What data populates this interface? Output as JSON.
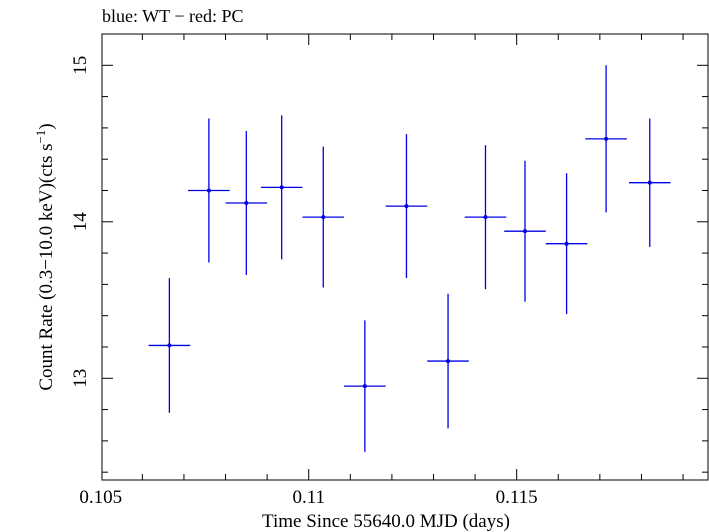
{
  "chart_data": {
    "type": "scatter",
    "title": "blue: WT − red: PC",
    "xlabel": "Time Since 55640.0 MJD (days)",
    "ylabel_main": "Count Rate (0.3−10.0 keV)(cts s",
    "ylabel_sup": "−1",
    "ylabel_close": ")",
    "xlim": [
      0.10503,
      0.1196
    ],
    "ylim": [
      12.35,
      15.2
    ],
    "x_ticks": [
      0.105,
      0.11,
      0.115
    ],
    "x_tick_labels": [
      "0.105",
      "0.11",
      "0.115"
    ],
    "y_ticks": [
      13,
      14,
      15
    ],
    "y_tick_labels": [
      "13",
      "14",
      "15"
    ],
    "x_minor_step": 0.001,
    "y_minor_step": 0.2,
    "color": "#0000e6",
    "series": [
      {
        "mode": "WT",
        "color": "#0000e6",
        "points": [
          {
            "x": 0.10665,
            "xerr": 0.0005,
            "y": 13.21,
            "yerr": 0.43
          },
          {
            "x": 0.1076,
            "xerr": 0.0005,
            "y": 14.2,
            "yerr": 0.46
          },
          {
            "x": 0.1085,
            "xerr": 0.0005,
            "y": 14.12,
            "yerr": 0.46
          },
          {
            "x": 0.10935,
            "xerr": 0.0005,
            "y": 14.22,
            "yerr": 0.46
          },
          {
            "x": 0.11035,
            "xerr": 0.0005,
            "y": 14.03,
            "yerr": 0.45
          },
          {
            "x": 0.11135,
            "xerr": 0.0005,
            "y": 12.95,
            "yerr": 0.42
          },
          {
            "x": 0.11235,
            "xerr": 0.0005,
            "y": 14.1,
            "yerr": 0.46
          },
          {
            "x": 0.11335,
            "xerr": 0.0005,
            "y": 13.11,
            "yerr": 0.43
          },
          {
            "x": 0.11425,
            "xerr": 0.0005,
            "y": 14.03,
            "yerr": 0.46
          },
          {
            "x": 0.1152,
            "xerr": 0.0005,
            "y": 13.94,
            "yerr": 0.45
          },
          {
            "x": 0.1162,
            "xerr": 0.0005,
            "y": 13.86,
            "yerr": 0.45
          },
          {
            "x": 0.11715,
            "xerr": 0.0005,
            "y": 14.53,
            "yerr": 0.47
          },
          {
            "x": 0.1182,
            "xerr": 0.0005,
            "y": 14.25,
            "yerr": 0.41
          }
        ]
      }
    ]
  }
}
